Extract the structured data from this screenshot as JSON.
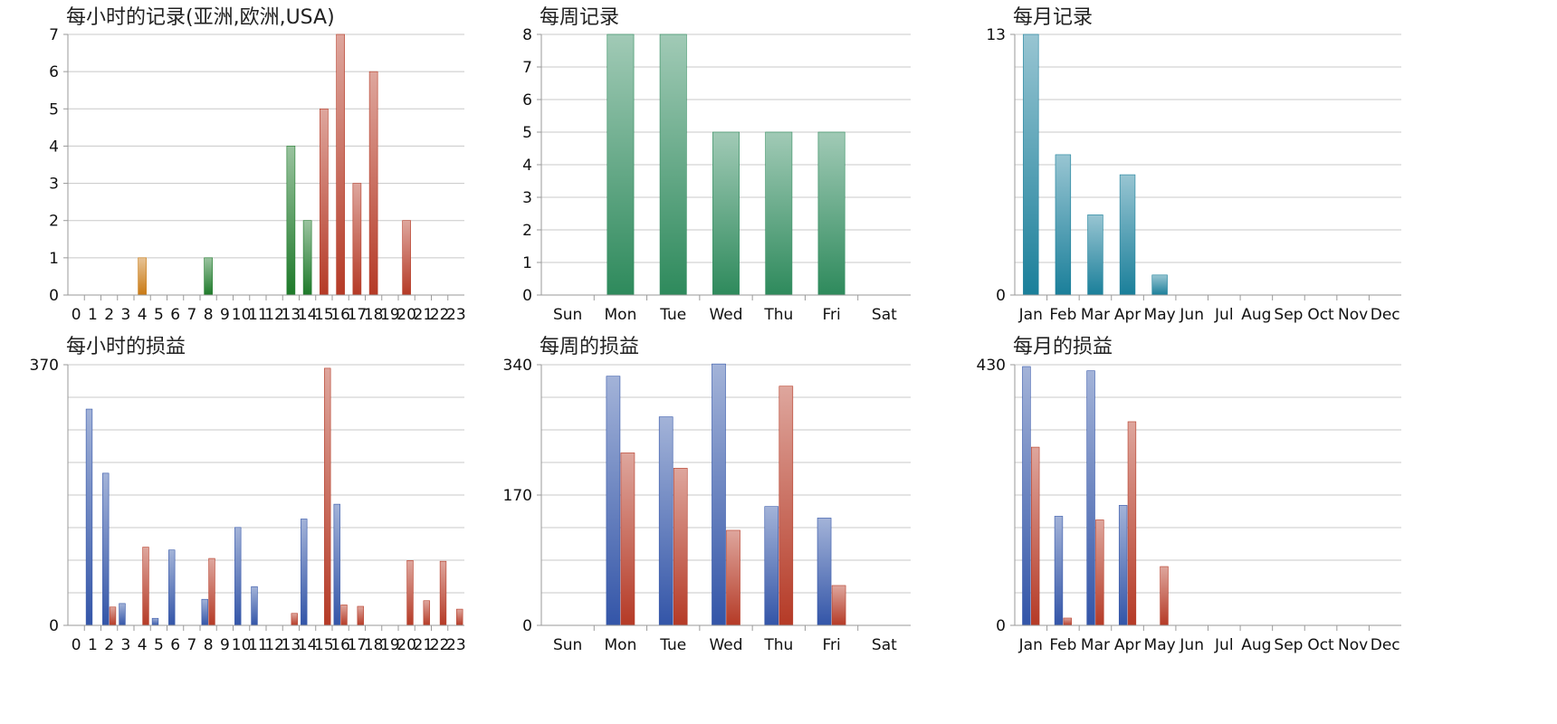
{
  "chart_data": [
    {
      "id": "hourly-records",
      "type": "bar",
      "title": "每小时的记录(亚洲,欧洲,USA)",
      "categories": [
        "0",
        "1",
        "2",
        "3",
        "4",
        "5",
        "6",
        "7",
        "8",
        "9",
        "10",
        "11",
        "12",
        "13",
        "14",
        "15",
        "16",
        "17",
        "18",
        "19",
        "20",
        "21",
        "22",
        "23"
      ],
      "series": [
        {
          "values": [
            0,
            0,
            0,
            0,
            1,
            0,
            0,
            0,
            1,
            0,
            0,
            0,
            0,
            4,
            2,
            5,
            7,
            3,
            6,
            0,
            2,
            0,
            0,
            0
          ]
        }
      ],
      "bar_color_by_category": [
        "#c97a14",
        "#c97a14",
        "#c97a14",
        "#c97a14",
        "#c97a14",
        "#c97a14",
        "#c97a14",
        "#c97a14",
        "#1e7a2a",
        "#1e7a2a",
        "#1e7a2a",
        "#1e7a2a",
        "#1e7a2a",
        "#1e7a2a",
        "#1e7a2a",
        "#b53a26",
        "#b53a26",
        "#b53a26",
        "#b53a26",
        "#b53a26",
        "#b53a26",
        "#b53a26",
        "#b53a26",
        "#b53a26"
      ],
      "ylim": [
        0,
        7
      ],
      "yticks": [
        "0",
        "1",
        "2",
        "3",
        "4",
        "5",
        "6",
        "7"
      ],
      "grid": true
    },
    {
      "id": "weekly-records",
      "type": "bar",
      "title": "每周记录",
      "categories": [
        "Sun",
        "Mon",
        "Tue",
        "Wed",
        "Thu",
        "Fri",
        "Sat"
      ],
      "series": [
        {
          "values": [
            0,
            8,
            8,
            5,
            5,
            5,
            0
          ],
          "color": "#2e8a5c"
        }
      ],
      "ylim": [
        0,
        8
      ],
      "yticks": [
        "0",
        "1",
        "2",
        "3",
        "4",
        "5",
        "6",
        "7",
        "8"
      ],
      "grid": true
    },
    {
      "id": "monthly-records",
      "type": "bar",
      "title": "每月记录",
      "categories": [
        "Jan",
        "Feb",
        "Mar",
        "Apr",
        "May",
        "Jun",
        "Jul",
        "Aug",
        "Sep",
        "Oct",
        "Nov",
        "Dec"
      ],
      "series": [
        {
          "values": [
            13,
            7,
            4,
            6,
            1,
            0,
            0,
            0,
            0,
            0,
            0,
            0
          ],
          "color": "#1a7f9a"
        }
      ],
      "ylim": [
        0,
        13
      ],
      "yticks": [
        "0",
        "13"
      ],
      "grid": true
    },
    {
      "id": "hourly-pnl",
      "type": "bar",
      "title": "每小时的损益",
      "categories": [
        "0",
        "1",
        "2",
        "3",
        "4",
        "5",
        "6",
        "7",
        "8",
        "9",
        "10",
        "11",
        "12",
        "13",
        "14",
        "15",
        "16",
        "17",
        "18",
        "19",
        "20",
        "21",
        "22",
        "23"
      ],
      "series": [
        {
          "color": "#3355a8",
          "values": [
            0,
            307,
            216,
            31,
            0,
            10,
            107,
            0,
            37,
            0,
            139,
            55,
            0,
            0,
            151,
            0,
            172,
            0,
            0,
            0,
            0,
            0,
            0,
            0
          ]
        },
        {
          "color": "#b53a26",
          "values": [
            0,
            0,
            26,
            0,
            111,
            0,
            0,
            0,
            95,
            0,
            0,
            0,
            0,
            17,
            0,
            365,
            29,
            27,
            0,
            0,
            92,
            35,
            91,
            23
          ]
        }
      ],
      "ylim": [
        0,
        370
      ],
      "yticks": [
        "0",
        "370"
      ],
      "grid": true
    },
    {
      "id": "weekly-pnl",
      "type": "bar",
      "title": "每周的损益",
      "categories": [
        "Sun",
        "Mon",
        "Tue",
        "Wed",
        "Thu",
        "Fri",
        "Sat"
      ],
      "series": [
        {
          "color": "#3355a8",
          "values": [
            0,
            325,
            272,
            341,
            155,
            140,
            0
          ]
        },
        {
          "color": "#b53a26",
          "values": [
            0,
            225,
            205,
            124,
            312,
            52,
            0
          ]
        }
      ],
      "ylim": [
        0,
        340
      ],
      "yticks": [
        "0",
        "170",
        "340"
      ],
      "grid": true
    },
    {
      "id": "monthly-pnl",
      "type": "bar",
      "title": "每月的损益",
      "categories": [
        "Jan",
        "Feb",
        "Mar",
        "Apr",
        "May",
        "Jun",
        "Jul",
        "Aug",
        "Sep",
        "Oct",
        "Nov",
        "Dec"
      ],
      "series": [
        {
          "color": "#3355a8",
          "values": [
            427,
            180,
            420,
            198,
            0,
            0,
            0,
            0,
            0,
            0,
            0,
            0
          ]
        },
        {
          "color": "#b53a26",
          "values": [
            294,
            12,
            174,
            336,
            97,
            0,
            0,
            0,
            0,
            0,
            0,
            0
          ]
        }
      ],
      "ylim": [
        0,
        430
      ],
      "yticks": [
        "0",
        "430"
      ],
      "grid": true
    }
  ]
}
